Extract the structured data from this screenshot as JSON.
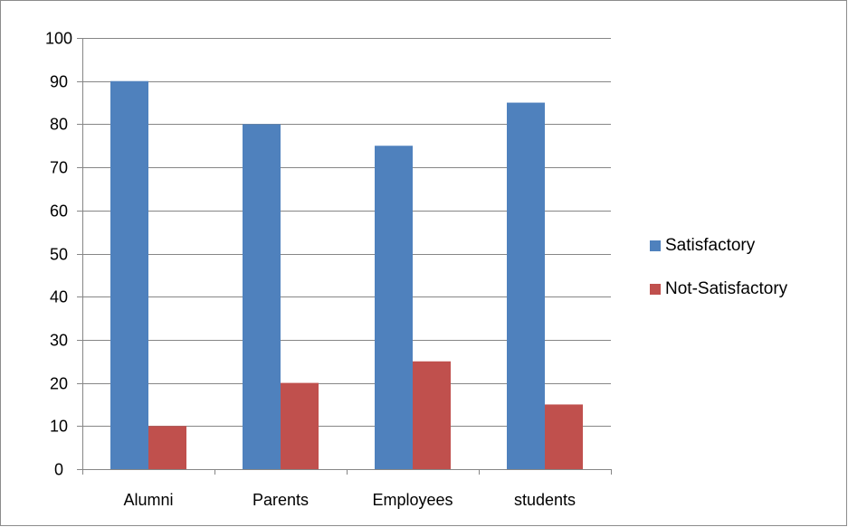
{
  "chart_data": {
    "type": "bar",
    "categories": [
      "Alumni",
      "Parents",
      "Employees",
      "students"
    ],
    "series": [
      {
        "name": "Satisfactory",
        "values": [
          90,
          80,
          75,
          85
        ],
        "color": "#4f81bd"
      },
      {
        "name": "Not-Satisfactory",
        "values": [
          10,
          20,
          25,
          15
        ],
        "color": "#c0504d"
      }
    ],
    "ylim": [
      0,
      100
    ],
    "yticks": [
      0,
      10,
      20,
      30,
      40,
      50,
      60,
      70,
      80,
      90,
      100
    ],
    "grid": true,
    "legend_position": "right",
    "xlabel": "",
    "ylabel": ""
  }
}
